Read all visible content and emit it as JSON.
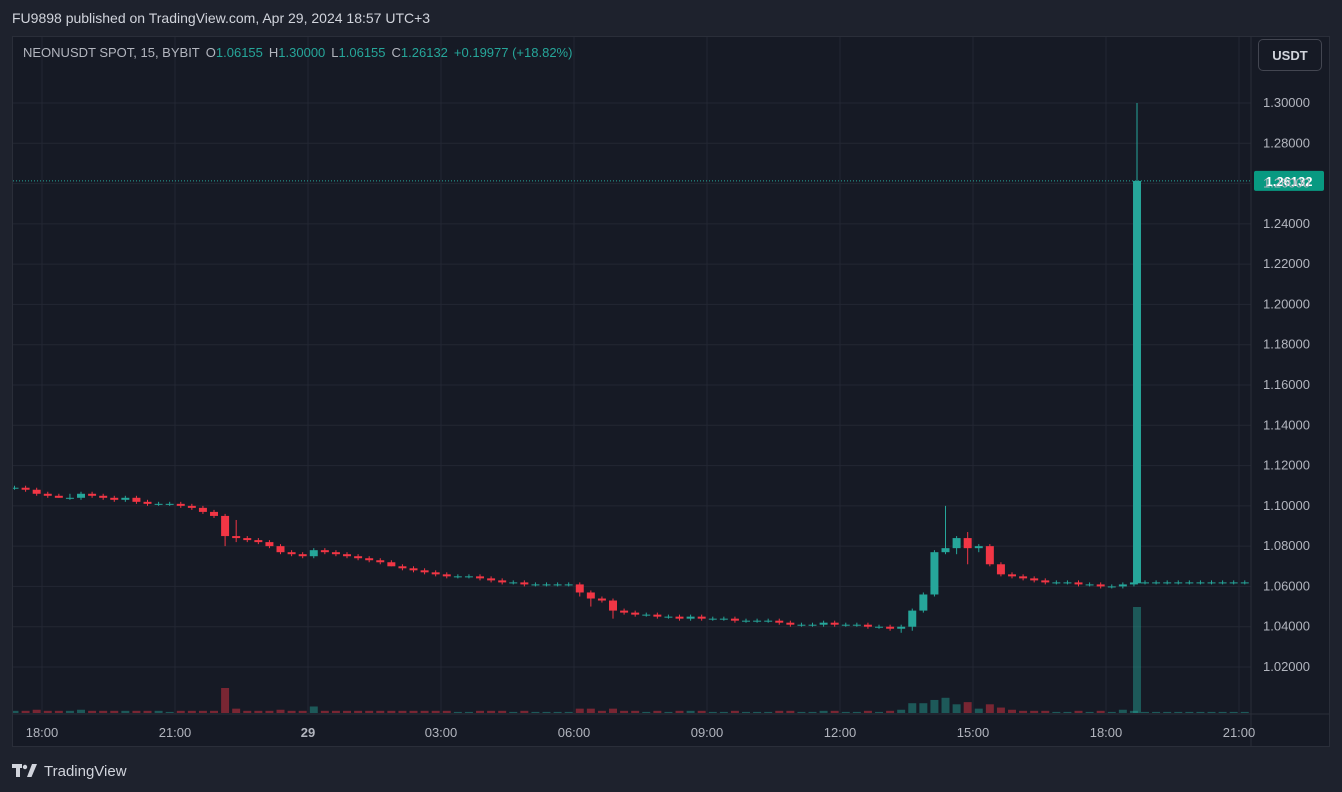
{
  "header": {
    "published": "FU9898 published on TradingView.com, Apr 29, 2024 18:57 UTC+3"
  },
  "legend": {
    "symbol": "NEONUSDT SPOT, 15, BYBIT",
    "o_label": "O",
    "o_value": "1.06155",
    "h_label": "H",
    "h_value": "1.30000",
    "l_label": "L",
    "l_value": "1.06155",
    "c_label": "C",
    "c_value": "1.26132",
    "change": "+0.19977 (+18.82%)"
  },
  "currency_button": "USDT",
  "footer": {
    "brand": "TradingView"
  },
  "colors": {
    "up": "#26a69a",
    "down": "#f23645",
    "background": "#161a25",
    "grid": "#232733",
    "price_label_bg": "#089981"
  },
  "chart_data": {
    "type": "candlestick",
    "symbol": "NEONUSDT",
    "interval": "15",
    "exchange": "BYBIT",
    "y_ticks": [
      "1.02000",
      "1.04000",
      "1.06000",
      "1.08000",
      "1.10000",
      "1.12000",
      "1.14000",
      "1.16000",
      "1.18000",
      "1.20000",
      "1.22000",
      "1.24000",
      "1.26000",
      "1.28000",
      "1.30000"
    ],
    "y_tick_values": [
      1.02,
      1.04,
      1.06,
      1.08,
      1.1,
      1.12,
      1.14,
      1.16,
      1.18,
      1.2,
      1.22,
      1.24,
      1.26,
      1.28,
      1.3
    ],
    "ylim": [
      1.01,
      1.32
    ],
    "x_ticks": [
      "18:00",
      "21:00",
      "29",
      "03:00",
      "06:00",
      "09:00",
      "12:00",
      "15:00",
      "18:00",
      "21:00"
    ],
    "x_tick_hours": [
      0,
      3,
      6,
      9,
      12,
      15,
      18,
      21,
      24,
      27
    ],
    "last_price": 1.26132,
    "last_price_label": "1.26132",
    "grid": true,
    "candles": [
      [
        1.109,
        1.11,
        1.108,
        1.109,
        0.2
      ],
      [
        1.109,
        1.11,
        1.107,
        1.108,
        0.2
      ],
      [
        1.108,
        1.109,
        1.105,
        1.106,
        0.3
      ],
      [
        1.106,
        1.107,
        1.104,
        1.105,
        0.2
      ],
      [
        1.105,
        1.106,
        1.104,
        1.104,
        0.2
      ],
      [
        1.104,
        1.106,
        1.103,
        1.104,
        0.2
      ],
      [
        1.104,
        1.107,
        1.103,
        1.106,
        0.3
      ],
      [
        1.106,
        1.107,
        1.104,
        1.105,
        0.2
      ],
      [
        1.105,
        1.106,
        1.103,
        1.104,
        0.2
      ],
      [
        1.104,
        1.105,
        1.102,
        1.103,
        0.2
      ],
      [
        1.103,
        1.105,
        1.102,
        1.104,
        0.2
      ],
      [
        1.104,
        1.105,
        1.101,
        1.102,
        0.2
      ],
      [
        1.102,
        1.103,
        1.1,
        1.101,
        0.2
      ],
      [
        1.101,
        1.102,
        1.1,
        1.101,
        0.2
      ],
      [
        1.101,
        1.102,
        1.1,
        1.101,
        0.1
      ],
      [
        1.101,
        1.102,
        1.099,
        1.1,
        0.2
      ],
      [
        1.1,
        1.101,
        1.098,
        1.099,
        0.2
      ],
      [
        1.099,
        1.1,
        1.096,
        1.097,
        0.2
      ],
      [
        1.097,
        1.098,
        1.094,
        1.095,
        0.2
      ],
      [
        1.095,
        1.096,
        1.08,
        1.085,
        2.3
      ],
      [
        1.085,
        1.093,
        1.082,
        1.084,
        0.4
      ],
      [
        1.084,
        1.085,
        1.082,
        1.083,
        0.2
      ],
      [
        1.083,
        1.084,
        1.081,
        1.082,
        0.2
      ],
      [
        1.082,
        1.083,
        1.079,
        1.08,
        0.2
      ],
      [
        1.08,
        1.081,
        1.076,
        1.077,
        0.3
      ],
      [
        1.077,
        1.078,
        1.075,
        1.076,
        0.2
      ],
      [
        1.076,
        1.077,
        1.074,
        1.075,
        0.2
      ],
      [
        1.075,
        1.079,
        1.074,
        1.078,
        0.6
      ],
      [
        1.078,
        1.079,
        1.076,
        1.077,
        0.2
      ],
      [
        1.077,
        1.078,
        1.075,
        1.076,
        0.2
      ],
      [
        1.076,
        1.077,
        1.074,
        1.075,
        0.2
      ],
      [
        1.075,
        1.076,
        1.073,
        1.074,
        0.2
      ],
      [
        1.074,
        1.075,
        1.072,
        1.073,
        0.2
      ],
      [
        1.073,
        1.074,
        1.071,
        1.072,
        0.2
      ],
      [
        1.072,
        1.073,
        1.07,
        1.07,
        0.2
      ],
      [
        1.07,
        1.071,
        1.068,
        1.069,
        0.2
      ],
      [
        1.069,
        1.07,
        1.067,
        1.068,
        0.2
      ],
      [
        1.068,
        1.069,
        1.066,
        1.067,
        0.2
      ],
      [
        1.067,
        1.068,
        1.065,
        1.066,
        0.2
      ],
      [
        1.066,
        1.067,
        1.064,
        1.065,
        0.2
      ],
      [
        1.065,
        1.066,
        1.064,
        1.065,
        0.1
      ],
      [
        1.065,
        1.066,
        1.064,
        1.065,
        0.1
      ],
      [
        1.065,
        1.066,
        1.063,
        1.064,
        0.2
      ],
      [
        1.064,
        1.065,
        1.062,
        1.063,
        0.2
      ],
      [
        1.063,
        1.064,
        1.061,
        1.062,
        0.2
      ],
      [
        1.062,
        1.063,
        1.061,
        1.062,
        0.1
      ],
      [
        1.062,
        1.063,
        1.06,
        1.061,
        0.2
      ],
      [
        1.061,
        1.062,
        1.06,
        1.061,
        0.1
      ],
      [
        1.061,
        1.062,
        1.06,
        1.061,
        0.1
      ],
      [
        1.061,
        1.062,
        1.06,
        1.061,
        0.1
      ],
      [
        1.061,
        1.062,
        1.06,
        1.061,
        0.1
      ],
      [
        1.061,
        1.062,
        1.055,
        1.057,
        0.4
      ],
      [
        1.057,
        1.058,
        1.05,
        1.054,
        0.4
      ],
      [
        1.054,
        1.055,
        1.052,
        1.053,
        0.2
      ],
      [
        1.053,
        1.054,
        1.044,
        1.048,
        0.4
      ],
      [
        1.048,
        1.049,
        1.046,
        1.047,
        0.2
      ],
      [
        1.047,
        1.048,
        1.045,
        1.046,
        0.2
      ],
      [
        1.046,
        1.047,
        1.045,
        1.046,
        0.1
      ],
      [
        1.046,
        1.047,
        1.044,
        1.045,
        0.2
      ],
      [
        1.045,
        1.046,
        1.044,
        1.045,
        0.1
      ],
      [
        1.045,
        1.046,
        1.043,
        1.044,
        0.2
      ],
      [
        1.044,
        1.046,
        1.043,
        1.045,
        0.2
      ],
      [
        1.045,
        1.046,
        1.043,
        1.044,
        0.2
      ],
      [
        1.044,
        1.045,
        1.043,
        1.044,
        0.1
      ],
      [
        1.044,
        1.045,
        1.043,
        1.044,
        0.1
      ],
      [
        1.044,
        1.045,
        1.042,
        1.043,
        0.2
      ],
      [
        1.043,
        1.044,
        1.042,
        1.043,
        0.1
      ],
      [
        1.043,
        1.044,
        1.042,
        1.043,
        0.1
      ],
      [
        1.043,
        1.044,
        1.042,
        1.043,
        0.1
      ],
      [
        1.043,
        1.044,
        1.041,
        1.042,
        0.2
      ],
      [
        1.042,
        1.043,
        1.04,
        1.041,
        0.2
      ],
      [
        1.041,
        1.042,
        1.04,
        1.041,
        0.1
      ],
      [
        1.041,
        1.042,
        1.04,
        1.041,
        0.1
      ],
      [
        1.041,
        1.043,
        1.04,
        1.042,
        0.2
      ],
      [
        1.042,
        1.043,
        1.04,
        1.041,
        0.2
      ],
      [
        1.041,
        1.042,
        1.04,
        1.041,
        0.1
      ],
      [
        1.041,
        1.042,
        1.04,
        1.041,
        0.1
      ],
      [
        1.041,
        1.042,
        1.039,
        1.04,
        0.2
      ],
      [
        1.04,
        1.041,
        1.039,
        1.04,
        0.1
      ],
      [
        1.04,
        1.041,
        1.038,
        1.039,
        0.2
      ],
      [
        1.039,
        1.041,
        1.037,
        1.04,
        0.3
      ],
      [
        1.04,
        1.049,
        1.038,
        1.048,
        0.9
      ],
      [
        1.048,
        1.057,
        1.047,
        1.056,
        0.9
      ],
      [
        1.056,
        1.078,
        1.055,
        1.077,
        1.2
      ],
      [
        1.077,
        1.1,
        1.076,
        1.079,
        1.4
      ],
      [
        1.079,
        1.085,
        1.076,
        1.084,
        0.8
      ],
      [
        1.084,
        1.087,
        1.071,
        1.079,
        1.0
      ],
      [
        1.079,
        1.081,
        1.077,
        1.08,
        0.4
      ],
      [
        1.08,
        1.081,
        1.07,
        1.071,
        0.8
      ],
      [
        1.071,
        1.072,
        1.065,
        1.066,
        0.5
      ],
      [
        1.066,
        1.067,
        1.064,
        1.065,
        0.3
      ],
      [
        1.065,
        1.066,
        1.063,
        1.064,
        0.2
      ],
      [
        1.064,
        1.065,
        1.062,
        1.063,
        0.2
      ],
      [
        1.063,
        1.064,
        1.061,
        1.062,
        0.2
      ],
      [
        1.062,
        1.063,
        1.061,
        1.062,
        0.1
      ],
      [
        1.062,
        1.063,
        1.061,
        1.062,
        0.1
      ],
      [
        1.062,
        1.063,
        1.06,
        1.061,
        0.2
      ],
      [
        1.061,
        1.062,
        1.06,
        1.061,
        0.1
      ],
      [
        1.061,
        1.062,
        1.059,
        1.06,
        0.2
      ],
      [
        1.06,
        1.061,
        1.059,
        1.06,
        0.1
      ],
      [
        1.06,
        1.062,
        1.059,
        1.061,
        0.3
      ],
      [
        1.061,
        1.062,
        1.06,
        1.062,
        0.2
      ],
      [
        1.062,
        1.063,
        1.061,
        1.062,
        0.1
      ],
      [
        1.062,
        1.063,
        1.061,
        1.062,
        0.1
      ],
      [
        1.062,
        1.063,
        1.061,
        1.062,
        0.1
      ],
      [
        1.062,
        1.063,
        1.061,
        1.062,
        0.1
      ],
      [
        1.062,
        1.063,
        1.061,
        1.062,
        0.1
      ],
      [
        1.062,
        1.063,
        1.061,
        1.062,
        0.1
      ],
      [
        1.062,
        1.063,
        1.061,
        1.062,
        0.1
      ],
      [
        1.062,
        1.063,
        1.061,
        1.062,
        0.1
      ],
      [
        1.062,
        1.063,
        1.061,
        1.062,
        0.1
      ],
      [
        1.062,
        1.063,
        1.061,
        1.062,
        0.1
      ],
      [
        1.06155,
        1.3,
        1.06155,
        1.26132,
        11.0
      ]
    ],
    "candle_columns": [
      "open",
      "high",
      "low",
      "close",
      "volume"
    ]
  }
}
